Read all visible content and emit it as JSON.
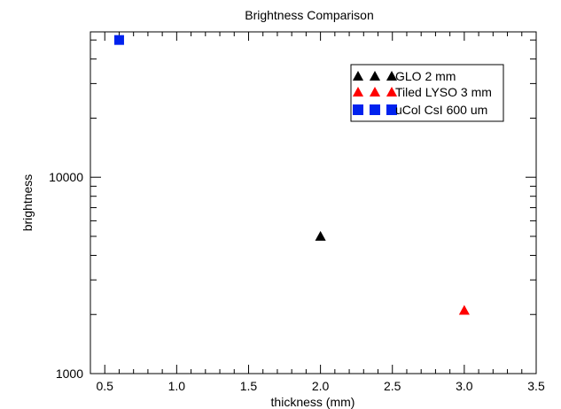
{
  "chart_data": {
    "type": "scatter",
    "title": "Brightness Comparison",
    "xlabel": "thickness (mm)",
    "ylabel": "brightness",
    "xlim": [
      0.4,
      3.5
    ],
    "ylim": [
      1000,
      55000
    ],
    "yscale": "log",
    "grid": false,
    "legend_placement": "top-right",
    "x_ticks": [
      0.5,
      1.0,
      1.5,
      2.0,
      2.5,
      3.0,
      3.5
    ],
    "x_tick_labels": [
      "0.5",
      "1.0",
      "1.5",
      "2.0",
      "2.5",
      "3.0",
      "3.5"
    ],
    "y_tick_labels": [
      {
        "value": 1000,
        "label": "1000"
      },
      {
        "value": 10000,
        "label": "10000"
      }
    ],
    "series": [
      {
        "name": "GLO 2 mm",
        "marker": "triangle",
        "color": "#000000",
        "points": [
          {
            "x": 2.0,
            "y": 5000
          }
        ]
      },
      {
        "name": "Tiled LYSO 3 mm",
        "marker": "triangle",
        "color": "#ff0000",
        "points": [
          {
            "x": 3.0,
            "y": 2100
          }
        ]
      },
      {
        "name": "uCol CsI 600 um",
        "marker": "square",
        "color": "#0022ee",
        "points": [
          {
            "x": 0.6,
            "y": 50000
          }
        ]
      }
    ]
  }
}
